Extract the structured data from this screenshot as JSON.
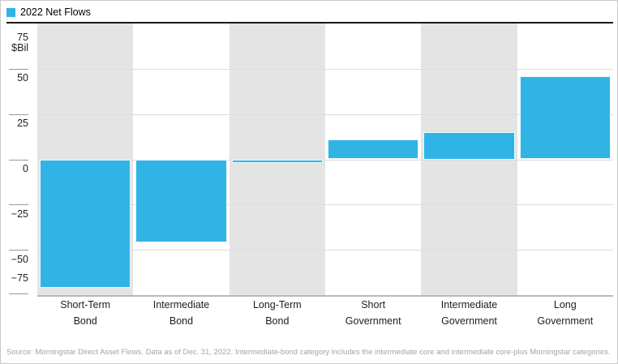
{
  "legend": {
    "label": "2022 Net Flows"
  },
  "y_axis": {
    "unit_label": "$Bil",
    "ticks": [
      75,
      50,
      25,
      0,
      -25,
      -50,
      -75
    ]
  },
  "chart_data": {
    "type": "bar",
    "title": "2022 Net Flows",
    "xlabel": "",
    "ylabel": "$Bil",
    "ylim": [
      -75,
      75
    ],
    "ytick_step": 25,
    "yticks": [
      75,
      50,
      25,
      0,
      -25,
      -50,
      -75
    ],
    "grid": true,
    "legend_position": "top-left",
    "categories": [
      "Short-Term Bond",
      "Intermediate Bond",
      "Long-Term Bond",
      "Short Government",
      "Intermediate Government",
      "Long Government"
    ],
    "category_label_lines": [
      [
        "Short-Term",
        "Bond"
      ],
      [
        "Intermediate",
        "Bond"
      ],
      [
        "Long-Term",
        "Bond"
      ],
      [
        "Short",
        "Government"
      ],
      [
        "Intermediate",
        "Government"
      ],
      [
        "Long",
        "Government"
      ]
    ],
    "values": [
      -71,
      -46,
      -2,
      11,
      15,
      46
    ],
    "banded_columns": [
      0,
      2,
      4
    ]
  },
  "source": {
    "text": "Source: Morningstar Direct Asset Flows. Data as of Dec. 31, 2022. Intermediate-bond category includes the intermediate core and intermediate core-plus Morningstar categories."
  },
  "colors": {
    "bar": "#30b4e6",
    "band": "#e4e4e4",
    "gridline": "#dcdcdc",
    "baseline": "#b8b8b8",
    "top_rule": "#1a1a1a",
    "tick": "#999999",
    "text": "#1e1e1e",
    "source_text": "#a3a3a3"
  }
}
